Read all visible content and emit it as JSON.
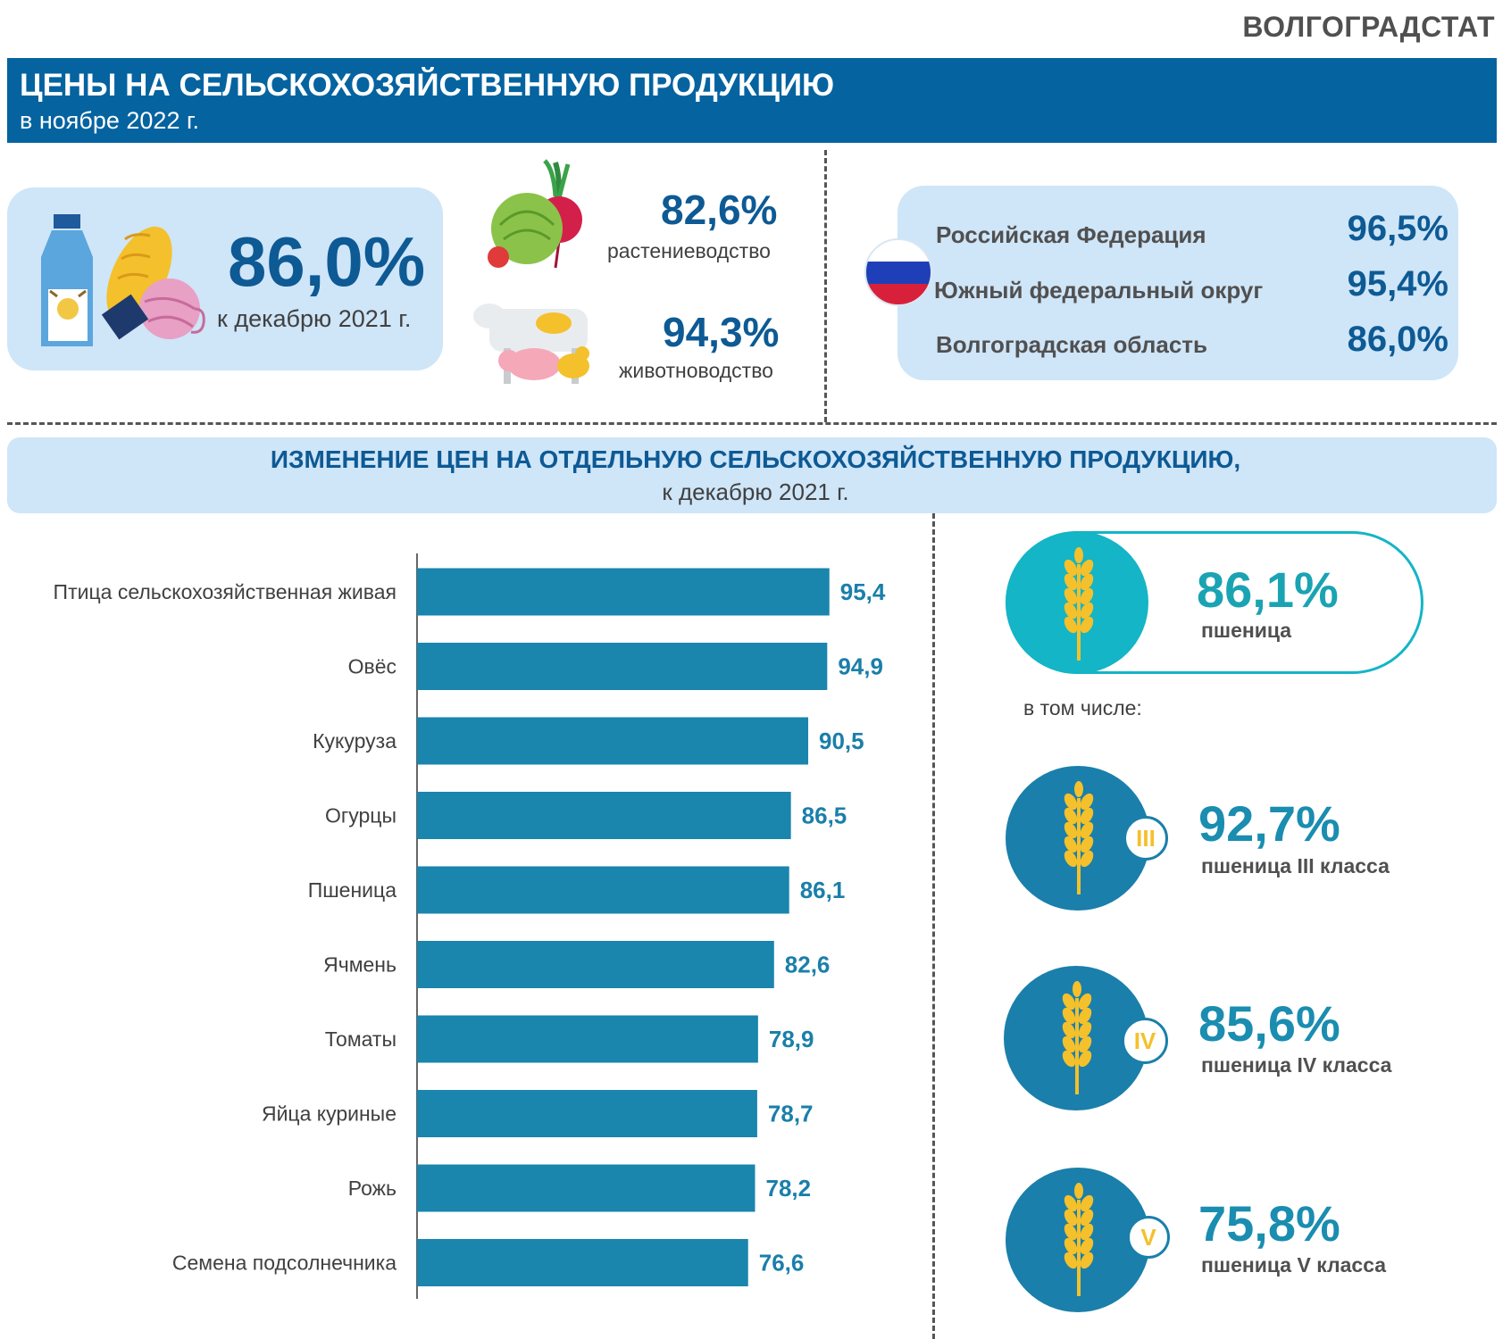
{
  "brand": "ВОЛГОГРАДСТАТ",
  "header": {
    "title": "ЦЕНЫ НА СЕЛЬСКОХОЗЯЙСТВЕННУЮ ПРОДУКЦИЮ",
    "subtitle": "в ноябре 2022 г."
  },
  "summary": {
    "total_value": "86,0%",
    "total_label": "к декабрю 2021 г.",
    "crops_value": "82,6%",
    "crops_label": "растениеводство",
    "livestock_value": "94,3%",
    "livestock_label": "животноводство"
  },
  "regions": [
    {
      "name": "Российская Федерация",
      "value": "96,5%"
    },
    {
      "name": "Южный федеральный округ",
      "value": "95,4%"
    },
    {
      "name": "Волгоградская область",
      "value": "86,0%"
    }
  ],
  "section2": {
    "title": "ИЗМЕНЕНИЕ ЦЕН НА ОТДЕЛЬНУЮ СЕЛЬСКОХОЗЯЙСТВЕННУЮ ПРОДУКЦИЮ,",
    "subtitle": "к декабрю 2021 г."
  },
  "wheat": {
    "main_value": "86,1%",
    "main_label": "пшеница",
    "including": "в том числе:",
    "classes": [
      {
        "badge": "III",
        "value": "92,7%",
        "label": "пшеница III класса"
      },
      {
        "badge": "IV",
        "value": "85,6%",
        "label": "пшеница IV класса"
      },
      {
        "badge": "V",
        "value": "75,8%",
        "label": "пшеница V класса"
      }
    ]
  },
  "colors": {
    "header_blue": "#0563a0",
    "card_light_blue": "#cfe5f8",
    "bar_blue": "#1a85ad",
    "teal": "#13b5c6",
    "wheat_dark_blue": "#1a7faa",
    "wheat_gold": "#f4c02c"
  },
  "chart_data": {
    "type": "bar",
    "orientation": "horizontal",
    "categories": [
      "Птица сельскохозяйственная живая",
      "Овёс",
      "Кукуруза",
      "Огурцы",
      "Пшеница",
      "Ячмень",
      "Томаты",
      "Яйца куриные",
      "Рожь",
      "Семена подсолнечника"
    ],
    "values": [
      95.4,
      94.9,
      90.5,
      86.5,
      86.1,
      82.6,
      78.9,
      78.7,
      78.2,
      76.6
    ],
    "value_labels": [
      "95,4",
      "94,9",
      "90,5",
      "86,5",
      "86,1",
      "82,6",
      "78,9",
      "78,7",
      "78,2",
      "76,6"
    ],
    "title": "",
    "xlabel": "",
    "ylabel": "",
    "xlim": [
      0,
      100
    ],
    "grid": false,
    "legend": "none"
  }
}
